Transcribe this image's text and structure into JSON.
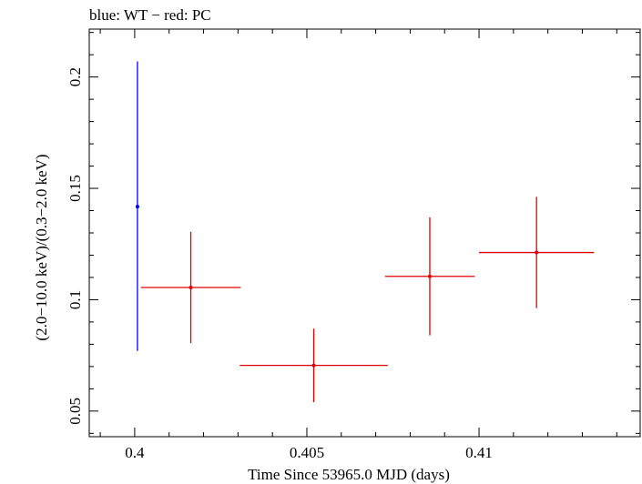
{
  "chart_data": {
    "type": "scatter",
    "title": "blue: WT − red: PC",
    "xlabel": "Time Since 53965.0 MJD (days)",
    "ylabel": "(2.0−10.0 keV)/(0.3−2.0 keV)",
    "xlim": [
      0.39868,
      0.41468
    ],
    "ylim": [
      0.0385,
      0.2215
    ],
    "x_major_ticks": [
      0.4,
      0.405,
      0.41
    ],
    "x_tick_labels": [
      "0.4",
      "0.405",
      "0.41"
    ],
    "y_major_ticks": [
      0.05,
      0.1,
      0.15,
      0.2
    ],
    "y_tick_labels": [
      "0.05",
      "0.1",
      "0.15",
      "0.2"
    ],
    "x_minor_step": 0.001,
    "y_minor_step": 0.01,
    "grid": false,
    "legend": "none",
    "series": [
      {
        "color": "#0000ff",
        "points": [
          {
            "x": 0.40008,
            "xerr_minus": 5e-05,
            "xerr_plus": 5e-05,
            "y": 0.1418,
            "yerr_minus": 0.0648,
            "yerr_plus": 0.0652
          }
        ]
      },
      {
        "color": "#e00000",
        "points": [
          {
            "x": 0.40163,
            "xerr_minus": 0.00145,
            "xerr_plus": 0.00145,
            "y": 0.1055,
            "yerr_minus": 0.025,
            "yerr_plus": 0.025
          },
          {
            "x": 0.4052,
            "xerr_minus": 0.00215,
            "xerr_plus": 0.00215,
            "y": 0.0705,
            "yerr_minus": 0.0165,
            "yerr_plus": 0.0165
          },
          {
            "x": 0.40857,
            "xerr_minus": 0.0013,
            "xerr_plus": 0.0013,
            "y": 0.1105,
            "yerr_minus": 0.0265,
            "yerr_plus": 0.0265
          },
          {
            "x": 0.41167,
            "xerr_minus": 0.00167,
            "xerr_plus": 0.00167,
            "y": 0.1212,
            "yerr_minus": 0.025,
            "yerr_plus": 0.025
          }
        ]
      }
    ]
  }
}
